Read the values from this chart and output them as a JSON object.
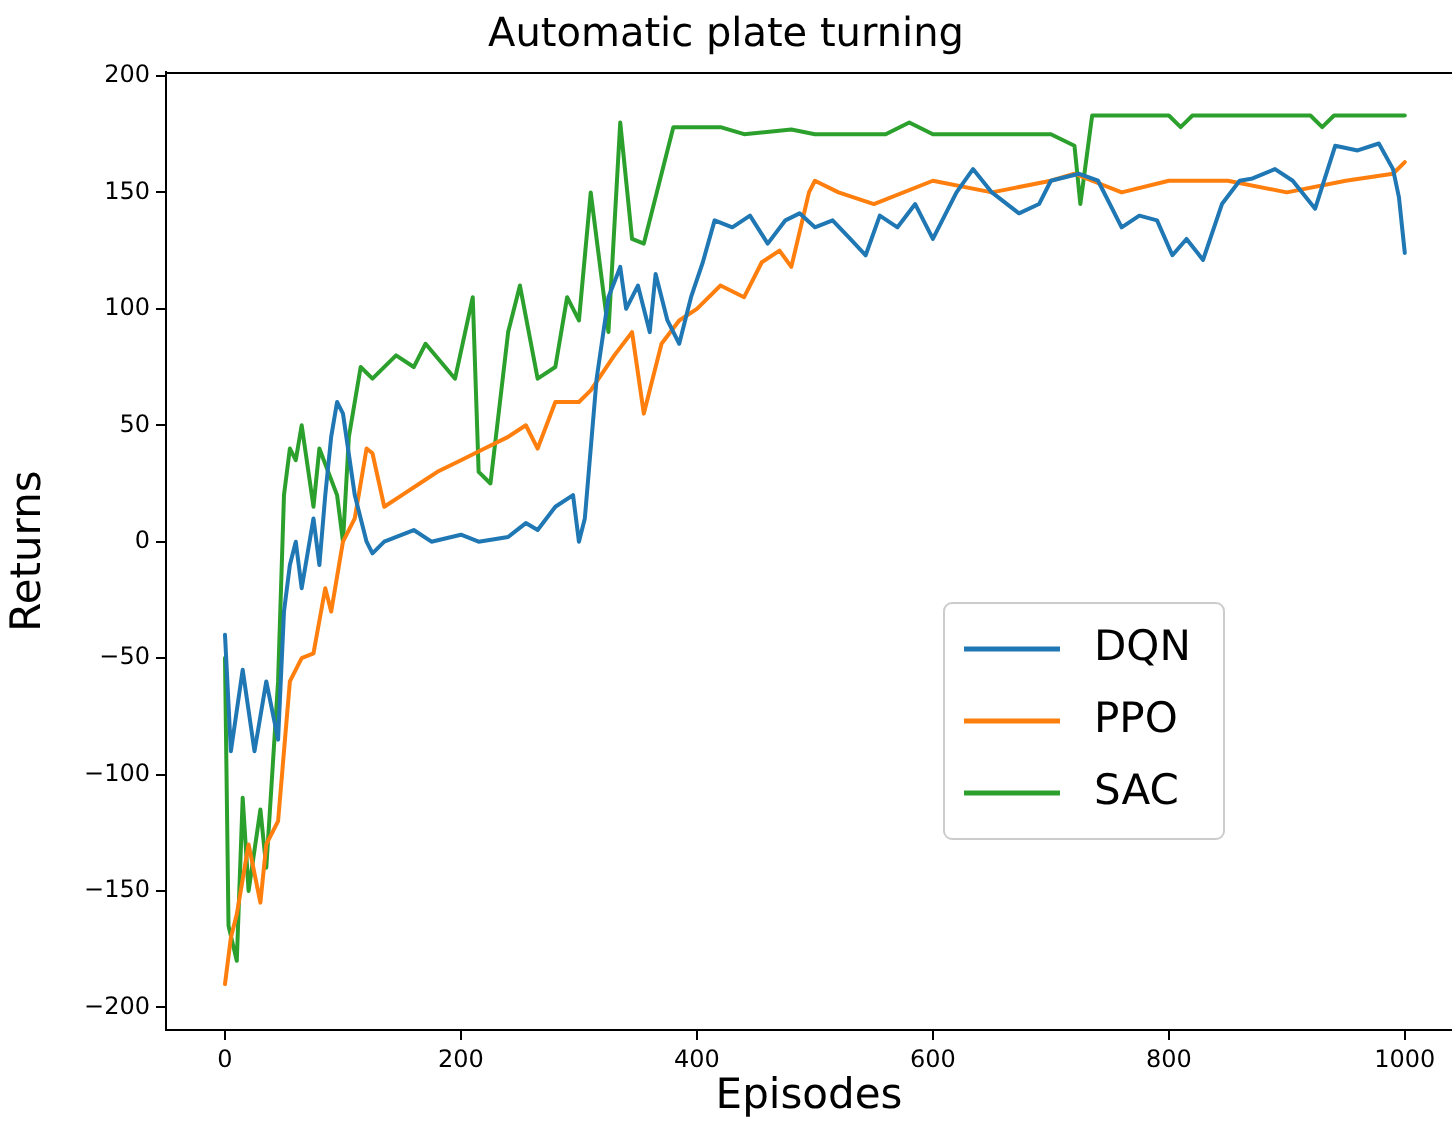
{
  "chart_data": {
    "type": "line",
    "title": "Automatic plate turning",
    "xlabel": "Episodes",
    "ylabel": "Returns",
    "xlim": [
      -50,
      1040
    ],
    "xticks": [
      0,
      200,
      400,
      600,
      800,
      1000
    ],
    "ylim": [
      -209.7,
      201.7
    ],
    "yticks": [
      -200,
      -150,
      -100,
      -50,
      0,
      50,
      100,
      150,
      200
    ],
    "grid": false,
    "legend": "center right",
    "line_style": "solid",
    "marker": "none",
    "series": [
      {
        "name": "DQN",
        "color": "#1f77b4",
        "x": [
          0,
          5,
          15,
          25,
          35,
          45,
          50,
          55,
          60,
          65,
          75,
          80,
          85,
          90,
          95,
          100,
          110,
          120,
          125,
          135,
          160,
          175,
          200,
          215,
          240,
          255,
          265,
          280,
          295,
          300,
          305,
          315,
          325,
          335,
          340,
          350,
          360,
          365,
          375,
          385,
          395,
          405,
          415,
          430,
          445,
          460,
          475,
          487,
          500,
          515,
          530,
          543,
          555,
          570,
          585,
          600,
          620,
          634,
          650,
          673,
          690,
          700,
          724,
          740,
          760,
          775,
          790,
          803,
          815,
          829,
          845,
          860,
          871,
          890,
          905,
          924,
          941,
          960,
          978,
          990,
          995,
          1000
        ],
        "values": [
          -40,
          -90,
          -55,
          -90,
          -60,
          -85,
          -30,
          -10,
          0,
          -20,
          10,
          -10,
          20,
          45,
          60,
          55,
          20,
          0,
          -5,
          0,
          5,
          0,
          3,
          0,
          2,
          8,
          5,
          15,
          20,
          0,
          10,
          70,
          105,
          118,
          100,
          110,
          90,
          115,
          95,
          85,
          105,
          120,
          138,
          135,
          140,
          128,
          138,
          141,
          135,
          138,
          130,
          123,
          140,
          135,
          145,
          130,
          150,
          160,
          150,
          141,
          145,
          155,
          158,
          155,
          135,
          140,
          138,
          123,
          130,
          121,
          145,
          155,
          156,
          160,
          155,
          143,
          170,
          168,
          171,
          160,
          148,
          124
        ]
      },
      {
        "name": "PPO",
        "color": "#ff7f0e",
        "x": [
          0,
          5,
          10,
          20,
          30,
          35,
          45,
          55,
          65,
          75,
          85,
          90,
          100,
          110,
          120,
          125,
          135,
          150,
          165,
          180,
          200,
          220,
          240,
          255,
          265,
          280,
          300,
          310,
          330,
          345,
          355,
          370,
          385,
          400,
          420,
          440,
          455,
          470,
          480,
          495,
          500,
          520,
          550,
          600,
          650,
          700,
          720,
          760,
          800,
          850,
          900,
          950,
          990,
          1000
        ],
        "values": [
          -190,
          -170,
          -160,
          -130,
          -155,
          -130,
          -120,
          -60,
          -50,
          -48,
          -20,
          -30,
          0,
          10,
          40,
          38,
          15,
          20,
          25,
          30,
          35,
          40,
          45,
          50,
          40,
          60,
          60,
          65,
          80,
          90,
          55,
          85,
          95,
          100,
          110,
          105,
          120,
          125,
          118,
          150,
          155,
          150,
          145,
          155,
          150,
          155,
          158,
          150,
          155,
          155,
          150,
          155,
          158,
          163
        ]
      },
      {
        "name": "SAC",
        "color": "#2ca02c",
        "x": [
          0,
          3,
          10,
          15,
          20,
          30,
          35,
          45,
          50,
          55,
          60,
          65,
          75,
          80,
          95,
          100,
          105,
          115,
          125,
          145,
          160,
          170,
          195,
          210,
          215,
          225,
          240,
          250,
          265,
          280,
          290,
          300,
          310,
          325,
          335,
          345,
          355,
          380,
          420,
          440,
          480,
          500,
          560,
          580,
          600,
          700,
          720,
          725,
          735,
          800,
          810,
          820,
          920,
          930,
          940,
          1000
        ],
        "values": [
          -50,
          -165,
          -180,
          -110,
          -150,
          -115,
          -140,
          -60,
          20,
          40,
          35,
          50,
          15,
          40,
          20,
          0,
          45,
          75,
          70,
          80,
          75,
          85,
          70,
          105,
          30,
          25,
          90,
          110,
          70,
          75,
          105,
          95,
          150,
          90,
          180,
          130,
          128,
          178,
          178,
          175,
          177,
          175,
          175,
          180,
          175,
          175,
          170,
          145,
          183,
          183,
          178,
          183,
          183,
          178,
          183,
          183
        ]
      }
    ]
  }
}
